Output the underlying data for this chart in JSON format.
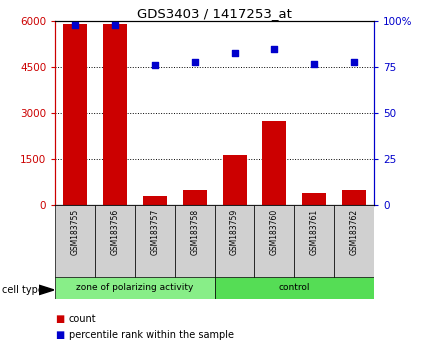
{
  "title": "GDS3403 / 1417253_at",
  "samples": [
    "GSM183755",
    "GSM183756",
    "GSM183757",
    "GSM183758",
    "GSM183759",
    "GSM183760",
    "GSM183761",
    "GSM183762"
  ],
  "counts": [
    5900,
    5900,
    300,
    500,
    1650,
    2750,
    400,
    500
  ],
  "percentiles": [
    98,
    98,
    76,
    78,
    83,
    85,
    77,
    78
  ],
  "ylim_left": [
    0,
    6000
  ],
  "ylim_right": [
    0,
    100
  ],
  "yticks_left": [
    0,
    1500,
    3000,
    4500,
    6000
  ],
  "ytick_labels_left": [
    "0",
    "1500",
    "3000",
    "4500",
    "6000"
  ],
  "yticks_right": [
    0,
    25,
    50,
    75,
    100
  ],
  "ytick_labels_right": [
    "0",
    "25",
    "50",
    "75",
    "100%"
  ],
  "bar_color": "#cc0000",
  "dot_color": "#0000cc",
  "groups": [
    {
      "label": "zone of polarizing activity",
      "start": 0,
      "end": 4,
      "color": "#88ee88"
    },
    {
      "label": "control",
      "start": 4,
      "end": 8,
      "color": "#55dd55"
    }
  ],
  "cell_type_label": "cell type",
  "legend_bar_label": "count",
  "legend_dot_label": "percentile rank within the sample",
  "background_color": "#ffffff",
  "plot_bg_color": "#ffffff",
  "sample_cell_color": "#d0d0d0"
}
